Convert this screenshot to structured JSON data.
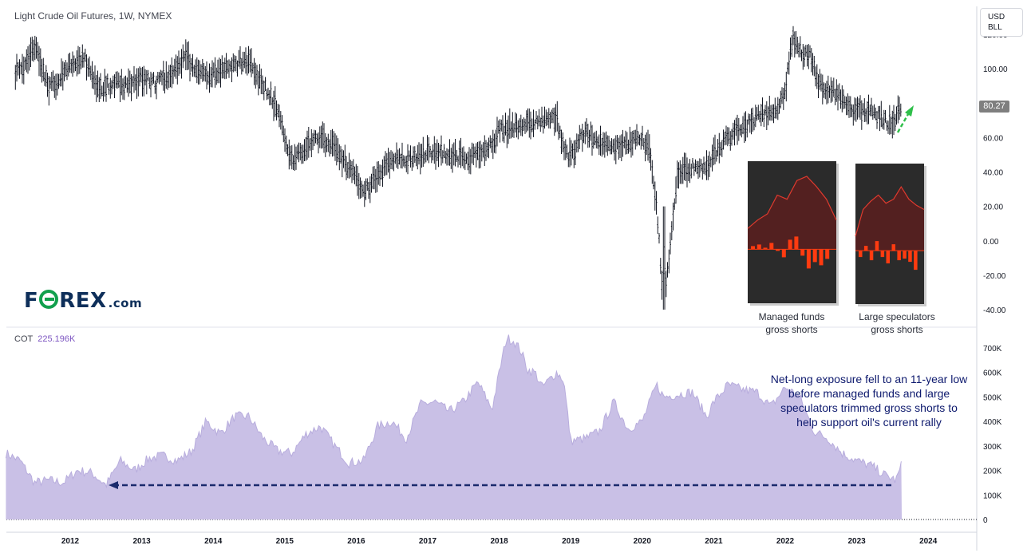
{
  "header": {
    "title": "Light Crude Oil Futures, 1W, NYMEX",
    "unit_line1": "USD",
    "unit_line2": "BLL",
    "last_price": "80.27"
  },
  "logo": {
    "text_before": "F",
    "text_after": "REX",
    "suffix": ".com"
  },
  "cot": {
    "label": "COT",
    "value": "225.196K"
  },
  "captions": {
    "managed": [
      "Managed funds",
      "gross shorts"
    ],
    "large": [
      "Large speculators",
      "gross shorts"
    ]
  },
  "annotation": "Net-long exposure fell to an 11-year low before managed funds and large speculators trimmed gross shorts to help support oil's current rally",
  "colors": {
    "candles": "#131722",
    "cot_fill": "#c9c0e6",
    "cot_line": "#b8addd",
    "arrow": "#1a2a6c",
    "up_arrow": "#2fbf4a",
    "inset_bg": "#2b2b2b",
    "inset_line": "#e03a2e",
    "inset_bar": "#ff3b10"
  },
  "chart_data": [
    {
      "type": "line",
      "title": "Light Crude Oil Futures, 1W, NYMEX",
      "x_axis": {
        "labels": [
          "2012",
          "2013",
          "2014",
          "2015",
          "2016",
          "2017",
          "2018",
          "2019",
          "2020",
          "2021",
          "2022",
          "2023",
          "2024"
        ]
      },
      "y_axis": {
        "labels": [
          "120.00",
          "100.00",
          "80.00",
          "60.00",
          "40.00",
          "20.00",
          "0.00",
          "-20.00",
          "-40.00"
        ],
        "range": [
          -40,
          120
        ]
      },
      "series": [
        {
          "x": [
            2011.3,
            2011.5,
            2011.7,
            2011.9,
            2012.0,
            2012.2,
            2012.4,
            2012.6,
            2012.8,
            2013.0,
            2013.2,
            2013.4,
            2013.6,
            2013.8,
            2014.0,
            2014.2,
            2014.4,
            2014.5,
            2014.6,
            2014.8,
            2014.9,
            2015.0,
            2015.1,
            2015.2,
            2015.4,
            2015.6,
            2015.8,
            2016.0,
            2016.1,
            2016.3,
            2016.5,
            2016.7,
            2016.9,
            2017.0,
            2017.2,
            2017.5,
            2017.7,
            2017.9,
            2018.0,
            2018.2,
            2018.4,
            2018.6,
            2018.8,
            2018.9,
            2019.0,
            2019.2,
            2019.4,
            2019.6,
            2019.8,
            2020.0,
            2020.1,
            2020.2,
            2020.3,
            2020.5,
            2020.7,
            2020.9,
            2021.0,
            2021.2,
            2021.4,
            2021.6,
            2021.8,
            2021.9,
            2022.0,
            2022.1,
            2022.2,
            2022.35,
            2022.45,
            2022.6,
            2022.8,
            2022.9,
            2023.0,
            2023.2,
            2023.3,
            2023.45,
            2023.55,
            2023.63
          ],
          "y": [
            98,
            114,
            88,
            96,
            103,
            106,
            88,
            92,
            90,
            95,
            92,
            96,
            108,
            96,
            98,
            100,
            104,
            103,
            96,
            84,
            76,
            60,
            48,
            50,
            60,
            58,
            48,
            36,
            28,
            38,
            48,
            46,
            50,
            52,
            50,
            48,
            50,
            56,
            64,
            66,
            68,
            70,
            72,
            54,
            48,
            64,
            56,
            54,
            56,
            60,
            52,
            22,
            -40,
            40,
            42,
            42,
            50,
            60,
            66,
            72,
            76,
            74,
            88,
            118,
            110,
            108,
            92,
            88,
            84,
            76,
            76,
            76,
            72,
            68,
            72,
            80.27
          ]
        }
      ]
    },
    {
      "type": "area",
      "title": "COT",
      "x_axis": {
        "labels": [
          "2012",
          "2013",
          "2014",
          "2015",
          "2016",
          "2017",
          "2018",
          "2019",
          "2020",
          "2021",
          "2022",
          "2023",
          "2024"
        ]
      },
      "y_axis": {
        "labels": [
          "700K",
          "600K",
          "500K",
          "400K",
          "300K",
          "200K",
          "100K",
          "0"
        ],
        "range": [
          0,
          740000
        ]
      },
      "series": [
        {
          "name": "COT",
          "x": [
            2011.1,
            2011.3,
            2011.5,
            2011.7,
            2011.9,
            2012.1,
            2012.3,
            2012.5,
            2012.7,
            2012.9,
            2013.1,
            2013.3,
            2013.5,
            2013.7,
            2013.9,
            2014.1,
            2014.3,
            2014.5,
            2014.7,
            2014.9,
            2015.1,
            2015.3,
            2015.5,
            2015.7,
            2015.9,
            2016.1,
            2016.3,
            2016.5,
            2016.7,
            2016.9,
            2017.1,
            2017.3,
            2017.5,
            2017.7,
            2017.9,
            2018.0,
            2018.1,
            2018.2,
            2018.3,
            2018.4,
            2018.5,
            2018.6,
            2018.8,
            2018.9,
            2019.0,
            2019.2,
            2019.4,
            2019.6,
            2019.8,
            2020.0,
            2020.2,
            2020.3,
            2020.5,
            2020.7,
            2020.9,
            2021.0,
            2021.2,
            2021.4,
            2021.6,
            2021.8,
            2022.0,
            2022.2,
            2022.4,
            2022.6,
            2022.8,
            2023.0,
            2023.2,
            2023.4,
            2023.55,
            2023.63
          ],
          "y": [
            270000,
            240000,
            150000,
            160000,
            150000,
            200000,
            190000,
            140000,
            240000,
            200000,
            250000,
            260000,
            240000,
            280000,
            400000,
            350000,
            420000,
            420000,
            330000,
            280000,
            270000,
            350000,
            380000,
            300000,
            230000,
            240000,
            380000,
            400000,
            330000,
            470000,
            480000,
            440000,
            480000,
            560000,
            450000,
            600000,
            740000,
            730000,
            690000,
            610000,
            600000,
            540000,
            600000,
            570000,
            320000,
            330000,
            360000,
            480000,
            370000,
            400000,
            550000,
            500000,
            510000,
            520000,
            420000,
            480000,
            550000,
            530000,
            520000,
            460000,
            540000,
            500000,
            360000,
            330000,
            270000,
            240000,
            220000,
            180000,
            160000,
            225196
          ]
        }
      ]
    },
    {
      "type": "area",
      "title": "Managed funds gross shorts",
      "series": [
        {
          "name": "line",
          "y": [
            20,
            28,
            34,
            52,
            48,
            66,
            70,
            60,
            48,
            28
          ]
        },
        {
          "name": "bars",
          "y": [
            2,
            3,
            1,
            4,
            -1,
            -5,
            6,
            8,
            -4,
            -12,
            -8,
            -10,
            -6
          ]
        }
      ]
    },
    {
      "type": "area",
      "title": "Large speculators gross shorts",
      "series": [
        {
          "name": "line",
          "y": [
            14,
            40,
            48,
            54,
            46,
            50,
            62,
            50,
            44,
            40
          ]
        },
        {
          "name": "bars",
          "y": [
            -4,
            3,
            -6,
            6,
            -4,
            -8,
            4,
            -6,
            -5,
            -7,
            -12
          ]
        }
      ]
    }
  ]
}
